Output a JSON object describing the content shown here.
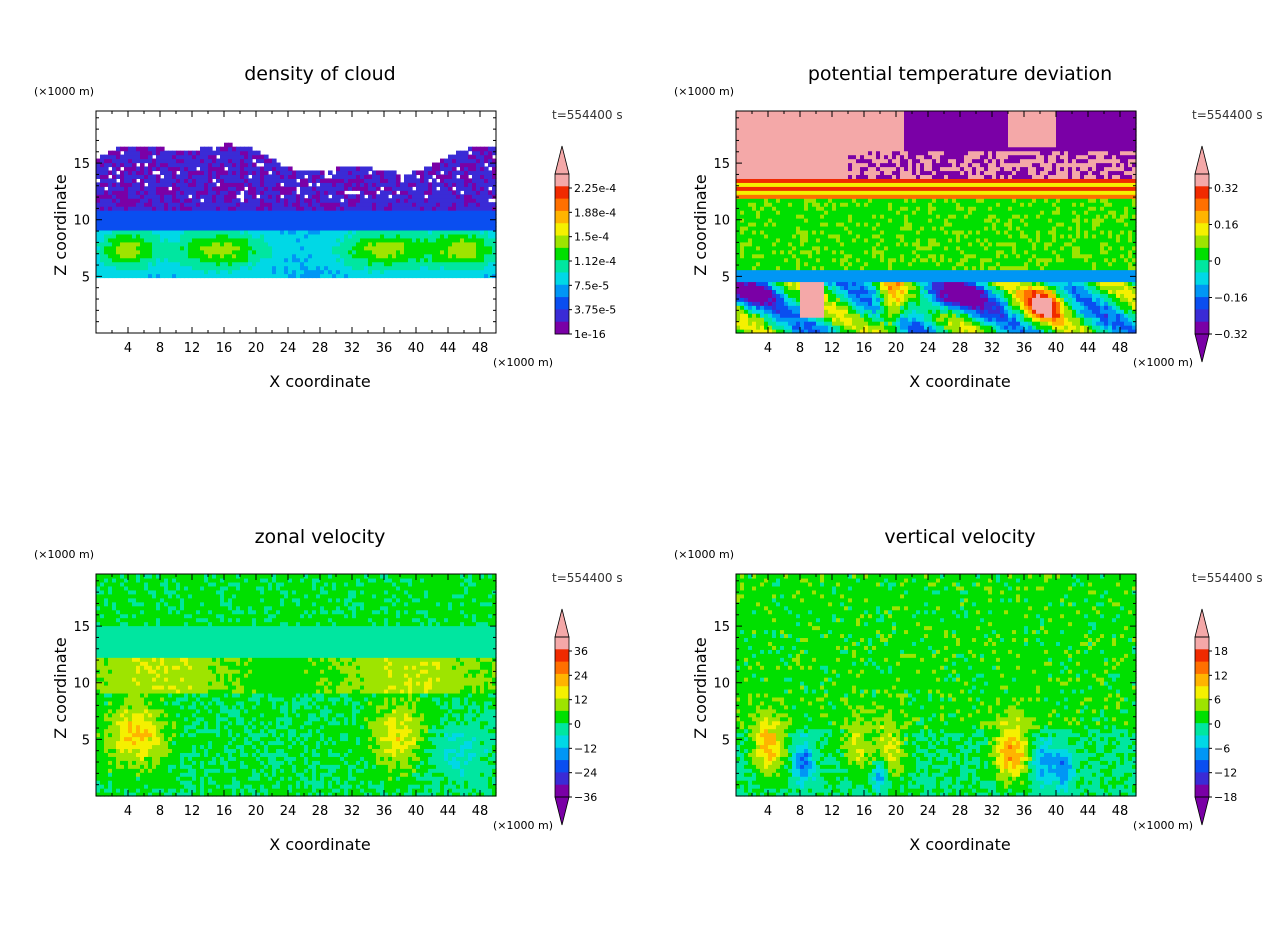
{
  "figure": {
    "colormap_colors": [
      "#7a00a6",
      "#3a2bd6",
      "#0a4ef0",
      "#0096f5",
      "#00d8e6",
      "#00e6a0",
      "#00e000",
      "#9ee400",
      "#f5f000",
      "#ffb400",
      "#ff7000",
      "#f02a00",
      "#f4a8a8"
    ],
    "accent_text": "#333333"
  },
  "chart_data": [
    {
      "type": "heatmap",
      "title": "density of cloud",
      "xlabel": "X coordinate",
      "ylabel": "Z coordinate",
      "x_unit": "(×1000 m)",
      "y_unit": "(×1000 m)",
      "time_label": "t=554400 s",
      "x_ticks": [
        "4",
        "8",
        "12",
        "16",
        "20",
        "24",
        "28",
        "32",
        "36",
        "40",
        "44",
        "48"
      ],
      "y_ticks": [
        "5",
        "10",
        "15"
      ],
      "xlim": [
        0,
        50
      ],
      "ylim": [
        0,
        19.6
      ],
      "colorbar_labels": [
        "2.25e-4",
        "1.88e-4",
        "1.5e-4",
        "1.12e-4",
        "7.5e-5",
        "3.75e-5",
        "1e-16"
      ],
      "colorbar_extend": "max",
      "field": "cloud",
      "grid": false
    },
    {
      "type": "heatmap",
      "title": "potential temperature deviation",
      "xlabel": "X coordinate",
      "ylabel": "Z coordinate",
      "x_unit": "(×1000 m)",
      "y_unit": "(×1000 m)",
      "time_label": "t=554400 s",
      "x_ticks": [
        "4",
        "8",
        "12",
        "16",
        "20",
        "24",
        "28",
        "32",
        "36",
        "40",
        "44",
        "48"
      ],
      "y_ticks": [
        "5",
        "10",
        "15"
      ],
      "xlim": [
        0,
        50
      ],
      "ylim": [
        0,
        19.6
      ],
      "colorbar_labels": [
        "0.32",
        "0.16",
        "0",
        "−0.16",
        "−0.32"
      ],
      "colorbar_extend": "both",
      "field": "theta",
      "grid": false
    },
    {
      "type": "heatmap",
      "title": "zonal velocity",
      "xlabel": "X coordinate",
      "ylabel": "Z coordinate",
      "x_unit": "(×1000 m)",
      "y_unit": "(×1000 m)",
      "time_label": "t=554400 s",
      "x_ticks": [
        "4",
        "8",
        "12",
        "16",
        "20",
        "24",
        "28",
        "32",
        "36",
        "40",
        "44",
        "48"
      ],
      "y_ticks": [
        "5",
        "10",
        "15"
      ],
      "xlim": [
        0,
        50
      ],
      "ylim": [
        0,
        19.6
      ],
      "colorbar_labels": [
        "36",
        "24",
        "12",
        "0",
        "−12",
        "−24",
        "−36"
      ],
      "colorbar_extend": "both",
      "field": "zonal",
      "grid": false
    },
    {
      "type": "heatmap",
      "title": "vertical velocity",
      "xlabel": "X coordinate",
      "ylabel": "Z coordinate",
      "x_unit": "(×1000 m)",
      "y_unit": "(×1000 m)",
      "time_label": "t=554400 s",
      "x_ticks": [
        "4",
        "8",
        "12",
        "16",
        "20",
        "24",
        "28",
        "32",
        "36",
        "40",
        "44",
        "48"
      ],
      "y_ticks": [
        "5",
        "10",
        "15"
      ],
      "xlim": [
        0,
        50
      ],
      "ylim": [
        0,
        19.6
      ],
      "colorbar_labels": [
        "18",
        "12",
        "6",
        "0",
        "−6",
        "−12",
        "−18"
      ],
      "colorbar_extend": "both",
      "field": "vertical",
      "grid": false
    }
  ]
}
